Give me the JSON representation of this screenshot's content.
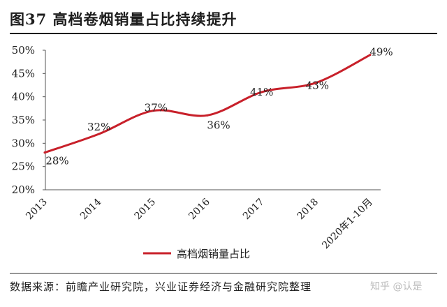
{
  "header": {
    "title": "图37 高档卷烟销量占比持续提升"
  },
  "footer": {
    "source": "数据来源：前瞻产业研究院，兴业证券经济与金融研究院整理",
    "watermark": "知乎 @认是"
  },
  "chart_data": {
    "type": "line",
    "title": "",
    "xlabel": "",
    "ylabel": "",
    "categories": [
      "2013",
      "2014",
      "2015",
      "2016",
      "2017",
      "2018",
      "2020年1-10月"
    ],
    "ylim": [
      20,
      50
    ],
    "yticks": [
      "20%",
      "25%",
      "30%",
      "35%",
      "40%",
      "45%",
      "50%"
    ],
    "series": [
      {
        "name": "高档烟销量占比",
        "values": [
          28,
          32,
          37,
          36,
          41,
          43,
          49
        ],
        "labels": [
          "28%",
          "32%",
          "37%",
          "36%",
          "41%",
          "43%",
          "49%"
        ],
        "color": "#c8202a"
      }
    ],
    "legend_position": "bottom",
    "grid": false
  }
}
